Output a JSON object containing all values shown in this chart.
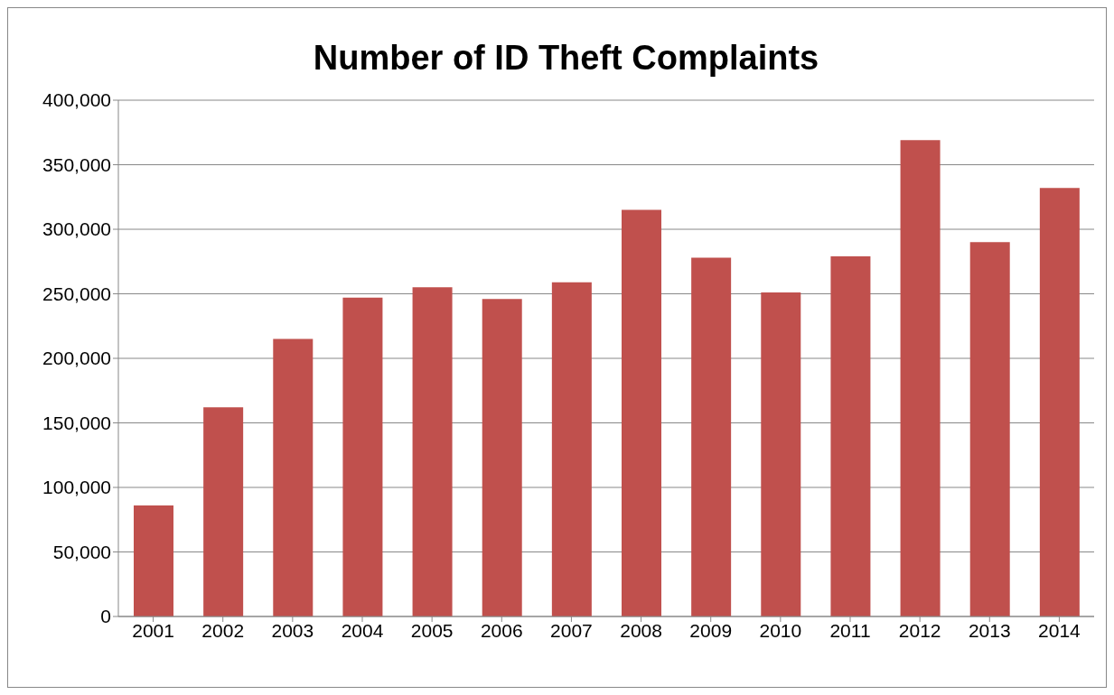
{
  "chart_data": {
    "type": "bar",
    "title": "Number of ID Theft Complaints",
    "categories": [
      "2001",
      "2002",
      "2003",
      "2004",
      "2005",
      "2006",
      "2007",
      "2008",
      "2009",
      "2010",
      "2011",
      "2012",
      "2013",
      "2014"
    ],
    "values": [
      86000,
      162000,
      215000,
      247000,
      255000,
      246000,
      259000,
      315000,
      278000,
      251000,
      279000,
      369000,
      290000,
      332000
    ],
    "color": "#c0504d",
    "ylim": [
      0,
      400000
    ],
    "yticks": [
      0,
      {
        "value": 50000,
        "label": "50,000"
      },
      {
        "value": 100000,
        "label": "100,000"
      },
      {
        "value": 150000,
        "label": "150,000"
      },
      {
        "value": 200000,
        "label": "200,000"
      },
      {
        "value": 250000,
        "label": "250,000"
      },
      {
        "value": 300000,
        "label": "300,000"
      },
      {
        "value": 350000,
        "label": "350,000"
      },
      {
        "value": 400000,
        "label": "400,000"
      }
    ],
    "grid": "y",
    "legend": false
  }
}
